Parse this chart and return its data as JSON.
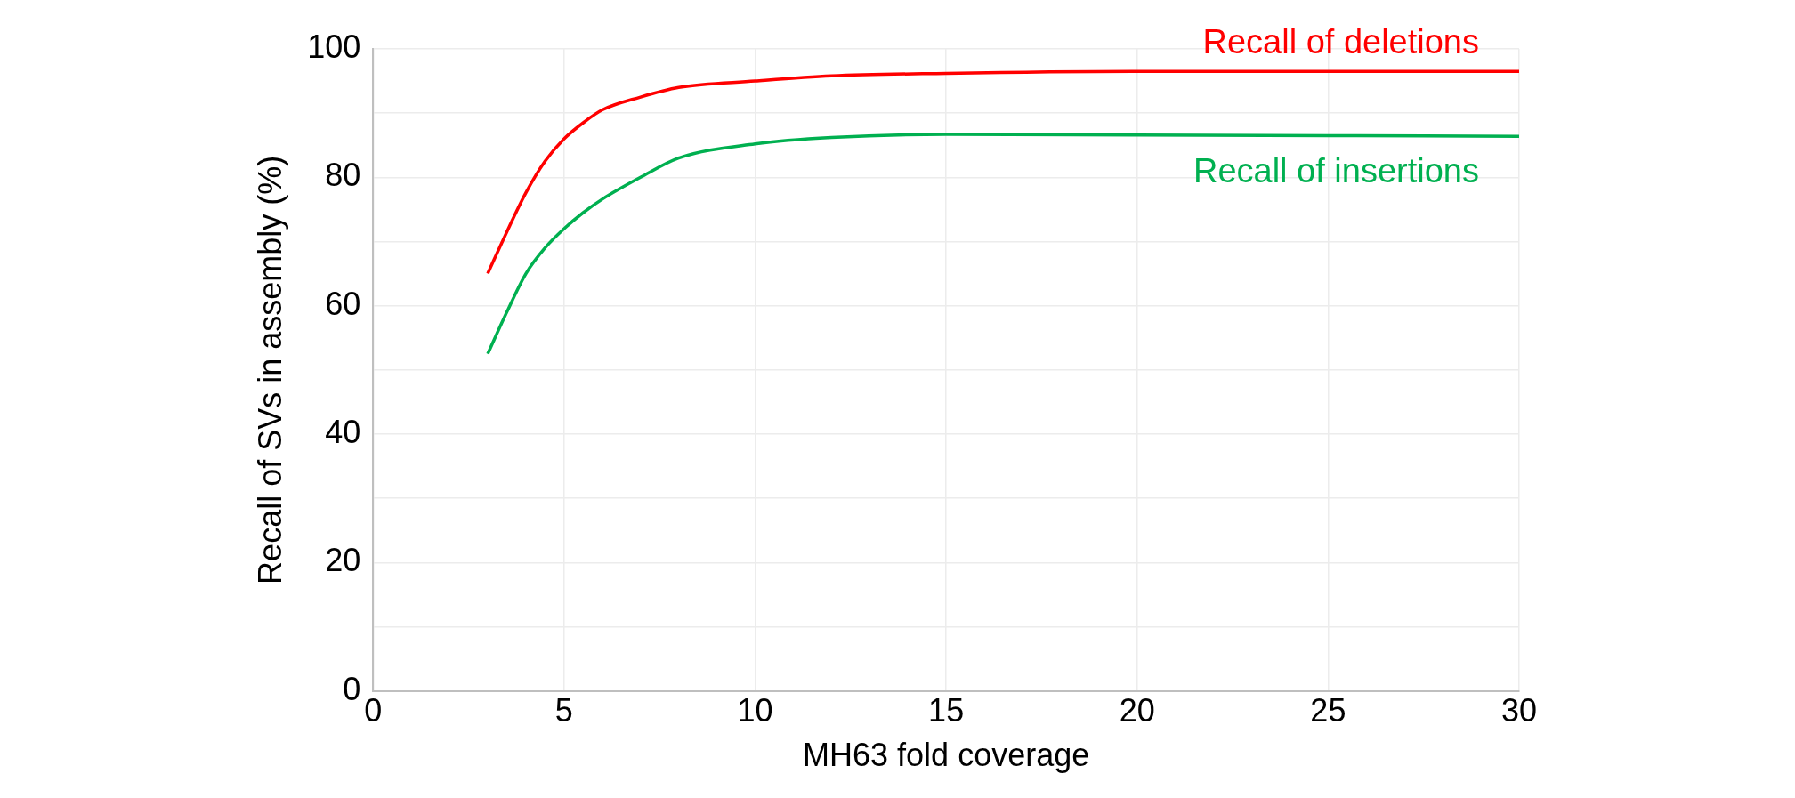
{
  "chart_data": {
    "type": "line",
    "xlabel": "MH63 fold coverage",
    "ylabel": "Recall of SVs in assembly (%)",
    "xlim": [
      0,
      30
    ],
    "xticks": [
      0,
      5,
      10,
      15,
      20,
      25,
      30
    ],
    "ylim": [
      0,
      100
    ],
    "yticks": [
      0,
      {
        "value": 10,
        "label": null
      },
      20,
      {
        "value": 30,
        "label": null
      },
      40,
      {
        "value": 50,
        "label": null
      },
      60,
      {
        "value": 70,
        "label": null
      },
      80,
      {
        "value": 90,
        "label": null
      },
      100
    ],
    "grid": true,
    "legend": false,
    "marker": "none",
    "line_style": "solid",
    "series": [
      {
        "name": "Recall of deletions",
        "color": "#ff0000",
        "x": [
          3,
          3.5,
          4,
          4.5,
          5,
          5.5,
          6,
          7,
          8,
          10,
          12,
          15,
          20,
          25,
          30
        ],
        "values": [
          65,
          71.5,
          77.6,
          82.5,
          86,
          88.5,
          90.5,
          92.5,
          94,
          95,
          95.8,
          96.2,
          96.5,
          96.5,
          96.5
        ]
      },
      {
        "name": "Recall of insertions",
        "color": "#00b050",
        "x": [
          3,
          3.5,
          4,
          4.5,
          5,
          5.5,
          6,
          7,
          8,
          10,
          12,
          15,
          20,
          25,
          30
        ],
        "values": [
          52.5,
          59,
          65,
          69,
          72,
          74.5,
          76.6,
          80,
          83,
          85.2,
          86.2,
          86.7,
          86.6,
          86.5,
          86.4
        ]
      }
    ]
  }
}
